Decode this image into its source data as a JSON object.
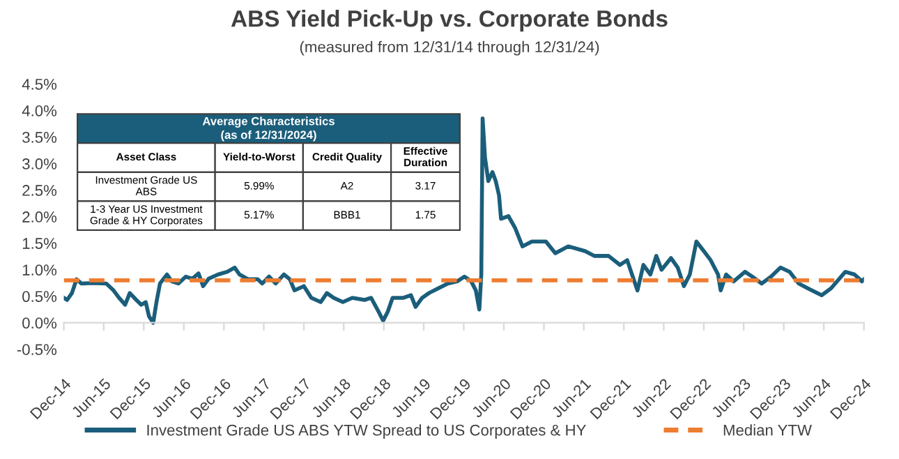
{
  "chart_data": {
    "type": "line",
    "title": "ABS Yield Pick-Up vs. Corporate Bonds",
    "subtitle": "(measured from 12/31/14 through 12/31/24)",
    "x": [
      "2014-12-01",
      "2014-12-16",
      "2015-01-07",
      "2015-01-28",
      "2015-02-19",
      "2015-04-10",
      "2015-06-13",
      "2015-07-16",
      "2015-08-10",
      "2015-09-07",
      "2015-09-28",
      "2015-10-28",
      "2015-11-19",
      "2015-12-10",
      "2015-12-25",
      "2016-01-13",
      "2016-01-28",
      "2016-02-13",
      "2016-03-16",
      "2016-04-07",
      "2016-05-07",
      "2016-06-10",
      "2016-07-10",
      "2016-08-07",
      "2016-08-28",
      "2016-09-22",
      "2016-11-04",
      "2016-12-16",
      "2017-01-19",
      "2017-02-10",
      "2017-03-22",
      "2017-05-04",
      "2017-05-25",
      "2017-06-25",
      "2017-07-25",
      "2017-09-01",
      "2017-09-28",
      "2017-10-19",
      "2017-12-01",
      "2018-01-04",
      "2018-02-16",
      "2018-03-16",
      "2018-04-16",
      "2018-05-28",
      "2018-07-10",
      "2018-09-04",
      "2018-10-04",
      "2018-11-07",
      "2018-11-28",
      "2018-12-19",
      "2019-01-10",
      "2019-03-01",
      "2019-04-04",
      "2019-04-25",
      "2019-05-25",
      "2019-06-25",
      "2019-08-07",
      "2019-09-19",
      "2019-11-01",
      "2019-12-04",
      "2020-01-04",
      "2020-01-25",
      "2020-02-10",
      "2020-02-19",
      "2020-02-25",
      "2020-03-07",
      "2020-03-22",
      "2020-04-10",
      "2020-04-25",
      "2020-05-10",
      "2020-05-19",
      "2020-06-22",
      "2020-07-22",
      "2020-08-25",
      "2020-10-07",
      "2020-12-10",
      "2021-01-22",
      "2021-03-22",
      "2021-06-07",
      "2021-07-19",
      "2021-09-22",
      "2021-11-13",
      "2021-12-16",
      "2022-01-07",
      "2022-02-01",
      "2022-02-28",
      "2022-04-01",
      "2022-04-28",
      "2022-05-22",
      "2022-07-04",
      "2022-08-04",
      "2022-09-01",
      "2022-09-28",
      "2022-10-28",
      "2022-12-01",
      "2023-01-01",
      "2023-02-04",
      "2023-02-16",
      "2023-03-13",
      "2023-04-16",
      "2023-06-07",
      "2023-07-10",
      "2023-08-22",
      "2023-10-04",
      "2023-11-16",
      "2023-12-28",
      "2024-02-07",
      "2024-03-19",
      "2024-05-22",
      "2024-07-04",
      "2024-09-07",
      "2024-10-19",
      "2024-11-22",
      "2024-12-01"
    ],
    "series": [
      {
        "name": "Investment Grade US ABS YTW Spread to US Corporates & HY",
        "color": "#1b5e7b",
        "values": [
          0.47,
          0.43,
          0.56,
          0.82,
          0.74,
          0.75,
          0.74,
          0.61,
          0.47,
          0.34,
          0.56,
          0.43,
          0.34,
          0.39,
          0.12,
          0.0,
          0.39,
          0.74,
          0.91,
          0.78,
          0.74,
          0.87,
          0.83,
          0.93,
          0.69,
          0.83,
          0.91,
          0.96,
          1.04,
          0.91,
          0.82,
          0.82,
          0.74,
          0.87,
          0.74,
          0.91,
          0.82,
          0.61,
          0.69,
          0.47,
          0.39,
          0.56,
          0.47,
          0.39,
          0.47,
          0.43,
          0.47,
          0.21,
          0.04,
          0.21,
          0.47,
          0.47,
          0.52,
          0.3,
          0.47,
          0.56,
          0.65,
          0.74,
          0.78,
          0.87,
          0.78,
          0.61,
          0.25,
          0.91,
          3.85,
          3.11,
          2.67,
          2.84,
          2.67,
          2.4,
          1.96,
          2.01,
          1.79,
          1.44,
          1.53,
          1.53,
          1.31,
          1.44,
          1.35,
          1.26,
          1.26,
          1.09,
          1.18,
          0.91,
          0.61,
          1.09,
          0.91,
          1.26,
          1.0,
          1.22,
          1.04,
          0.69,
          0.91,
          1.53,
          1.35,
          1.18,
          0.91,
          0.61,
          0.91,
          0.78,
          0.96,
          0.87,
          0.74,
          0.87,
          1.04,
          0.96,
          0.74,
          0.65,
          0.52,
          0.65,
          0.96,
          0.91,
          0.78,
          0.82
        ]
      }
    ],
    "ref_lines": [
      {
        "axis": "y",
        "value": 0.8,
        "label": "Median YTW",
        "color": "#ed7d31",
        "line_style": "dashed"
      }
    ],
    "xlim": [
      "2014-12-01",
      "2024-12-01"
    ],
    "xticks": [
      {
        "value": "2014-12-01",
        "label": "Dec-14"
      },
      {
        "value": "2015-06-01",
        "label": "Jun-15"
      },
      {
        "value": "2015-12-01",
        "label": "Dec-15"
      },
      {
        "value": "2016-06-01",
        "label": "Jun-16"
      },
      {
        "value": "2016-12-01",
        "label": "Dec-16"
      },
      {
        "value": "2017-06-01",
        "label": "Jun-17"
      },
      {
        "value": "2017-12-01",
        "label": "Dec-17"
      },
      {
        "value": "2018-06-01",
        "label": "Jun-18"
      },
      {
        "value": "2018-12-01",
        "label": "Dec-18"
      },
      {
        "value": "2019-06-01",
        "label": "Jun-19"
      },
      {
        "value": "2019-12-01",
        "label": "Dec-19"
      },
      {
        "value": "2020-06-01",
        "label": "Jun-20"
      },
      {
        "value": "2020-12-01",
        "label": "Dec-20"
      },
      {
        "value": "2021-06-01",
        "label": "Jun-21"
      },
      {
        "value": "2021-12-01",
        "label": "Dec-21"
      },
      {
        "value": "2022-06-01",
        "label": "Jun-22"
      },
      {
        "value": "2022-12-01",
        "label": "Dec-22"
      },
      {
        "value": "2023-06-01",
        "label": "Jun-23"
      },
      {
        "value": "2023-12-01",
        "label": "Dec-23"
      },
      {
        "value": "2024-06-01",
        "label": "Jun-24"
      },
      {
        "value": "2024-12-01",
        "label": "Dec-24"
      }
    ],
    "ylim": [
      -0.5,
      4.5
    ],
    "yticks": [
      {
        "value": -0.5,
        "label": "-0.5%"
      },
      {
        "value": 0,
        "label": "0.0%"
      },
      {
        "value": 0.5,
        "label": "0.5%"
      },
      {
        "value": 1,
        "label": "1.0%"
      },
      {
        "value": 1.5,
        "label": "1.5%"
      },
      {
        "value": 2,
        "label": "2.0%"
      },
      {
        "value": 2.5,
        "label": "2.5%"
      },
      {
        "value": 3,
        "label": "3.0%"
      },
      {
        "value": 3.5,
        "label": "3.5%"
      },
      {
        "value": 4,
        "label": "4.0%"
      },
      {
        "value": 4.5,
        "label": "4.5%"
      }
    ],
    "legend": "bottom",
    "marker": "none",
    "line_style": "solid",
    "annotations": [
      "Average Characteristics",
      "(as of 12/31/2024)",
      "Asset Class",
      "Yield-to-Worst",
      "Credit Quality",
      "Effective\nDuration",
      "Investment Grade US\nABS",
      "5.99%",
      "A2",
      "3.17",
      "1-3 Year US Investment\nGrade & HY Corporates",
      "5.17%",
      "BBB1",
      "1.75"
    ]
  }
}
